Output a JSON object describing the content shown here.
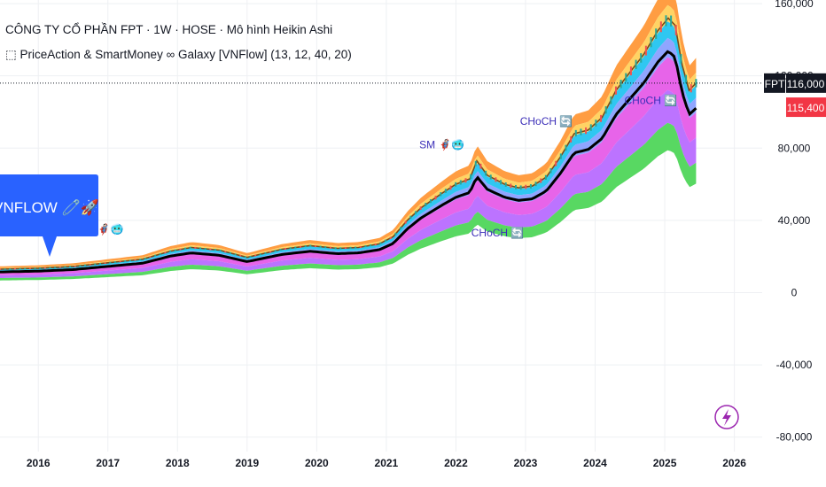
{
  "header": {
    "title": "CÔNG TY CỔ PHẦN FPT · 1W · HOSE · Mô hình Heikin Ashi",
    "indicator": "⬚ PriceAction & SmartMoney ∞ Galaxy [VNFlow] (13, 12, 40, 20)"
  },
  "chart_data": {
    "type": "area",
    "xlabel": "",
    "ylabel": "",
    "x_ticks": [
      "2016",
      "2017",
      "2018",
      "2019",
      "2020",
      "2021",
      "2022",
      "2023",
      "2024",
      "2025",
      "2026"
    ],
    "y_ticks": [
      "160,000",
      "120,000",
      "80,000",
      "40,000",
      "0",
      "-40,000",
      "-80,000"
    ],
    "y_tick_values": [
      160000,
      120000,
      80000,
      40000,
      0,
      -40000,
      -80000
    ],
    "ylim": [
      -88000,
      162000
    ],
    "xlim": [
      2015.45,
      2026.4
    ],
    "grid": true,
    "symbol": "FPT",
    "last_price": "116,000",
    "last_price_value": 116000,
    "second_price": "115,400",
    "second_price_value": 115400,
    "price_series": {
      "x": [
        2015.45,
        2016.0,
        2016.5,
        2017.0,
        2017.5,
        2017.9,
        2018.2,
        2018.6,
        2019.0,
        2019.5,
        2019.9,
        2020.3,
        2020.6,
        2020.9,
        2021.1,
        2021.3,
        2021.5,
        2021.8,
        2022.0,
        2022.2,
        2022.3,
        2022.45,
        2022.7,
        2022.9,
        2023.1,
        2023.3,
        2023.5,
        2023.7,
        2023.9,
        2024.1,
        2024.3,
        2024.5,
        2024.7,
        2024.9,
        2025.05,
        2025.15,
        2025.25,
        2025.35,
        2025.45
      ],
      "y": [
        13000,
        13500,
        14500,
        16500,
        18500,
        23000,
        25000,
        23500,
        19500,
        24000,
        26000,
        24500,
        25000,
        27000,
        31000,
        40000,
        47000,
        55000,
        60000,
        63000,
        73000,
        65000,
        60000,
        58000,
        59000,
        64000,
        75000,
        88000,
        90000,
        97000,
        112000,
        122000,
        132000,
        145000,
        152000,
        148000,
        126000,
        112000,
        116000
      ]
    },
    "annotations": [
      {
        "text": "SM 🦸🏻🥶",
        "x": 2016.9,
        "y": 33000
      },
      {
        "text": "SM 🦸🏻🥶",
        "x": 2021.8,
        "y": 80000
      },
      {
        "text": "CHoCH 🔄",
        "x": 2023.3,
        "y": 93000
      },
      {
        "text": "CHoCH 🔄",
        "x": 2022.6,
        "y": 31000
      },
      {
        "text": "CHoCH 🔄",
        "x": 2024.8,
        "y": 104500
      }
    ],
    "callout": "VNFLOW 🧷🚀"
  },
  "colors": {
    "grid": "#eef0f3",
    "price_line": "#000000",
    "badge_dark": "#131722",
    "badge_red": "#f23645",
    "callout": "#2962ff",
    "annotation": "#3c2fb8",
    "bands": [
      "#ff9838",
      "#ffd15c",
      "#24c4f0",
      "#8aa0ff",
      "#e65ce8",
      "#b86bff",
      "#4fd65a"
    ]
  },
  "logo": "lightning-icon"
}
